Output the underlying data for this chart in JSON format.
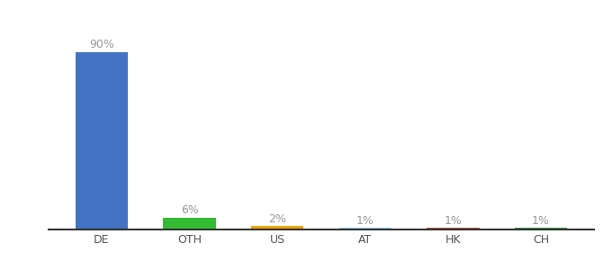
{
  "categories": [
    "DE",
    "OTH",
    "US",
    "AT",
    "HK",
    "CH"
  ],
  "values": [
    90,
    6,
    2,
    1,
    1,
    1
  ],
  "labels": [
    "90%",
    "6%",
    "2%",
    "1%",
    "1%",
    "1%"
  ],
  "bar_colors": [
    "#4472c4",
    "#33bb33",
    "#f0a500",
    "#88ccee",
    "#c0522a",
    "#339933"
  ],
  "background_color": "#ffffff",
  "ylim": [
    0,
    100
  ],
  "label_fontsize": 9,
  "tick_fontsize": 9,
  "label_color": "#999999",
  "tick_color": "#555555",
  "bar_width": 0.6
}
